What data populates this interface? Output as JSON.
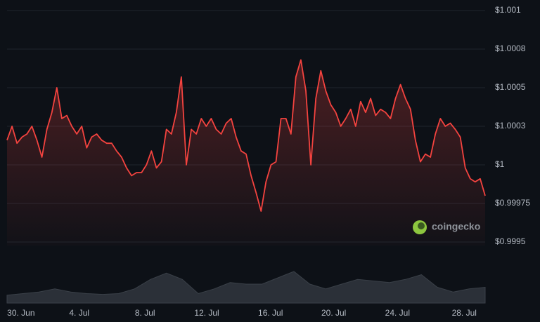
{
  "chart_data": {
    "type": "line",
    "series": [
      {
        "color": "#f4433f",
        "values": [
          1.00016,
          1.00025,
          1.00014,
          1.00018,
          1.0002,
          1.00025,
          1.00016,
          1.00005,
          1.00023,
          1.00034,
          1.0005,
          1.0003,
          1.00032,
          1.00025,
          1.0002,
          1.00025,
          1.00011,
          1.00018,
          1.0002,
          1.00016,
          1.00014,
          1.00014,
          1.00009,
          1.00005,
          0.99998,
          0.99993,
          0.99995,
          0.99995,
          1,
          1.00009,
          0.99998,
          1.00002,
          1.00023,
          1.0002,
          1.00034,
          1.00057,
          1,
          1.00023,
          1.0002,
          1.0003,
          1.00025,
          1.0003,
          1.00023,
          1.0002,
          1.00027,
          1.0003,
          1.00018,
          1.00009,
          1.00007,
          0.99993,
          0.99982,
          0.9997,
          0.99989,
          1,
          1.00002,
          1.0003,
          1.0003,
          1.0002,
          1.00057,
          1.00068,
          1.00048,
          1,
          1.00043,
          1.00061,
          1.00048,
          1.00039,
          1.00034,
          1.00025,
          1.0003,
          1.00036,
          1.00025,
          1.00041,
          1.00034,
          1.00043,
          1.00032,
          1.00036,
          1.00034,
          1.0003,
          1.00043,
          1.00052,
          1.00043,
          1.00036,
          1.00016,
          1.00002,
          1.00007,
          1.00005,
          1.0002,
          1.0003,
          1.00025,
          1.00027,
          1.00023,
          1.00018,
          0.99998,
          0.99991,
          0.99989,
          0.99991,
          0.9998
        ]
      }
    ],
    "volume": {
      "color": "#2b3038",
      "values": [
        10,
        12,
        14,
        18,
        14,
        12,
        11,
        12,
        18,
        30,
        38,
        30,
        12,
        18,
        26,
        24,
        24,
        32,
        40,
        24,
        18,
        24,
        30,
        28,
        26,
        30,
        36,
        20,
        14,
        18,
        20
      ]
    },
    "xlim": [
      0,
      96
    ],
    "xticks": [
      {
        "value": 2.8,
        "label": "30. Jun"
      },
      {
        "value": 14.5,
        "label": "4. Jul"
      },
      {
        "value": 27.7,
        "label": "8. Jul"
      },
      {
        "value": 40.1,
        "label": "12. Jul"
      },
      {
        "value": 52.9,
        "label": "16. Jul"
      },
      {
        "value": 65.6,
        "label": "20. Jul"
      },
      {
        "value": 78.4,
        "label": "24. Jul"
      },
      {
        "value": 91.8,
        "label": "28. Jul"
      }
    ],
    "ylim": [
      0.9995,
      1.001
    ],
    "yticks": [
      {
        "value": 0.9995,
        "label": "$0.9995"
      },
      {
        "value": 0.99975,
        "label": "$0.99975"
      },
      {
        "value": 1,
        "label": "$1"
      },
      {
        "value": 1.00025,
        "label": "$1.0003"
      },
      {
        "value": 1.0005,
        "label": "$1.0005"
      },
      {
        "value": 1.00075,
        "label": "$1.0008"
      },
      {
        "value": 1.001,
        "label": "$1.001"
      }
    ],
    "grid": true,
    "watermark": "coingecko"
  }
}
